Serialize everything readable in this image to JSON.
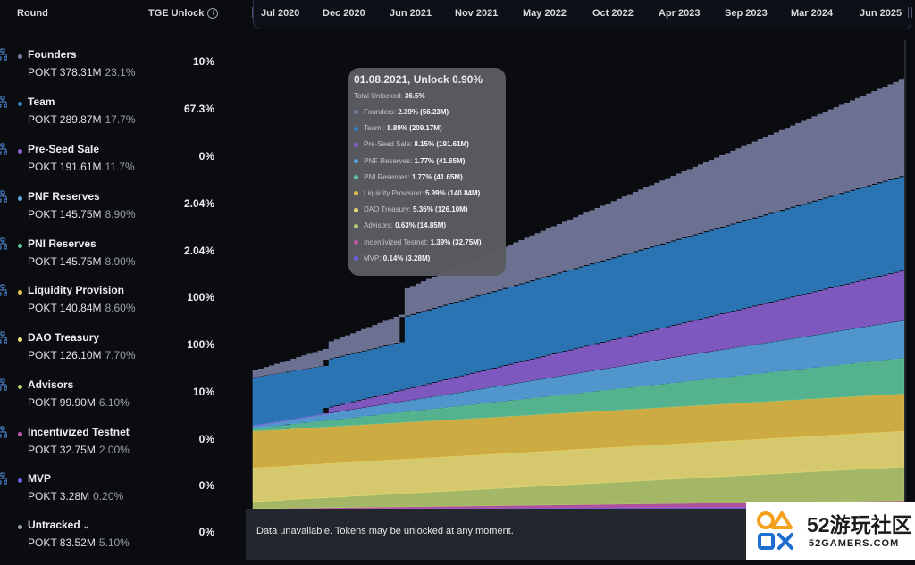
{
  "header": {
    "round_label": "Round",
    "tge_label": "TGE Unlock",
    "info_glyph": "i"
  },
  "rounds": [
    {
      "name": "Founders",
      "amount": "POKT 378.31M",
      "pct": "23.1%",
      "tge": "10%",
      "color": "#7b7fa3"
    },
    {
      "name": "Team",
      "amount": "POKT 289.87M",
      "pct": "17.7%",
      "tge": "67.3%",
      "color": "#2f83c9"
    },
    {
      "name": "Pre-Seed Sale",
      "amount": "POKT 191.61M",
      "pct": "11.7%",
      "tge": "0%",
      "color": "#8e63d6"
    },
    {
      "name": "PNF Reserves",
      "amount": "POKT 145.75M",
      "pct": "8.90%",
      "tge": "2.04%",
      "color": "#5aa9e6"
    },
    {
      "name": "PNI Reserves",
      "amount": "POKT 145.75M",
      "pct": "8.90%",
      "tge": "2.04%",
      "color": "#5fc9a0"
    },
    {
      "name": "Liquidity Provision",
      "amount": "POKT 140.84M",
      "pct": "8.60%",
      "tge": "100%",
      "color": "#e7c24a"
    },
    {
      "name": "DAO Treasury",
      "amount": "POKT 126.10M",
      "pct": "7.70%",
      "tge": "100%",
      "color": "#f1e27a"
    },
    {
      "name": "Advisors",
      "amount": "POKT 99.90M",
      "pct": "6.10%",
      "tge": "10%",
      "color": "#b9cf72"
    },
    {
      "name": "Incentivized Testnet",
      "amount": "POKT 32.75M",
      "pct": "2.00%",
      "tge": "0%",
      "color": "#c45ab0"
    },
    {
      "name": "MVP",
      "amount": "POKT 3.28M",
      "pct": "0.20%",
      "tge": "0%",
      "color": "#6a64e6"
    },
    {
      "name": "Untracked",
      "amount": "POKT 83.52M",
      "pct": "5.10%",
      "tge": "0%",
      "color": "#9aa0aa"
    }
  ],
  "untracked_chevron": "⌄",
  "timeline": [
    "Jul 2020",
    "Dec 2020",
    "Jun 2021",
    "Nov 2021",
    "May 2022",
    "Oct 2022",
    "Apr 2023",
    "Sep 2023",
    "Mar 2024",
    "Jun 2025"
  ],
  "tooltip": {
    "title": "01.08.2021, Unlock 0.90%",
    "total_label": "Total Unlocked:",
    "total_value": "36.5%",
    "rows": [
      {
        "label": "Founders:",
        "value": "2.39% (56.23M)",
        "color": "#7b7fa3"
      },
      {
        "label": "Team :",
        "value": "8.89% (209.17M)",
        "color": "#2f83c9"
      },
      {
        "label": "Pre-Seed Sale:",
        "value": "8.15% (191.61M)",
        "color": "#8e63d6"
      },
      {
        "label": "PNF Reserves:",
        "value": "1.77% (41.65M)",
        "color": "#5aa9e6"
      },
      {
        "label": "PNI Reserves:",
        "value": "1.77% (41.65M)",
        "color": "#5fc9a0"
      },
      {
        "label": "Liquidity Provision:",
        "value": "5.99% (140.84M)",
        "color": "#e7c24a"
      },
      {
        "label": "DAO Treasury:",
        "value": "5.36% (126.10M)",
        "color": "#f1e27a"
      },
      {
        "label": "Advisors:",
        "value": "0.63% (14.85M)",
        "color": "#b9cf72"
      },
      {
        "label": "Incentivized Testnet:",
        "value": "1.39% (32.75M)",
        "color": "#c45ab0"
      },
      {
        "label": "MVP:",
        "value": "0.14% (3.28M)",
        "color": "#6a64e6"
      }
    ]
  },
  "footer": {
    "text": "Data unavailable. Tokens may be unlocked at any moment."
  },
  "watermark": {
    "cn": "52游玩社区",
    "en": "52GAMERS.COM"
  },
  "icons": {
    "row_icon": "network-icon",
    "info_icon": "info-icon"
  }
}
